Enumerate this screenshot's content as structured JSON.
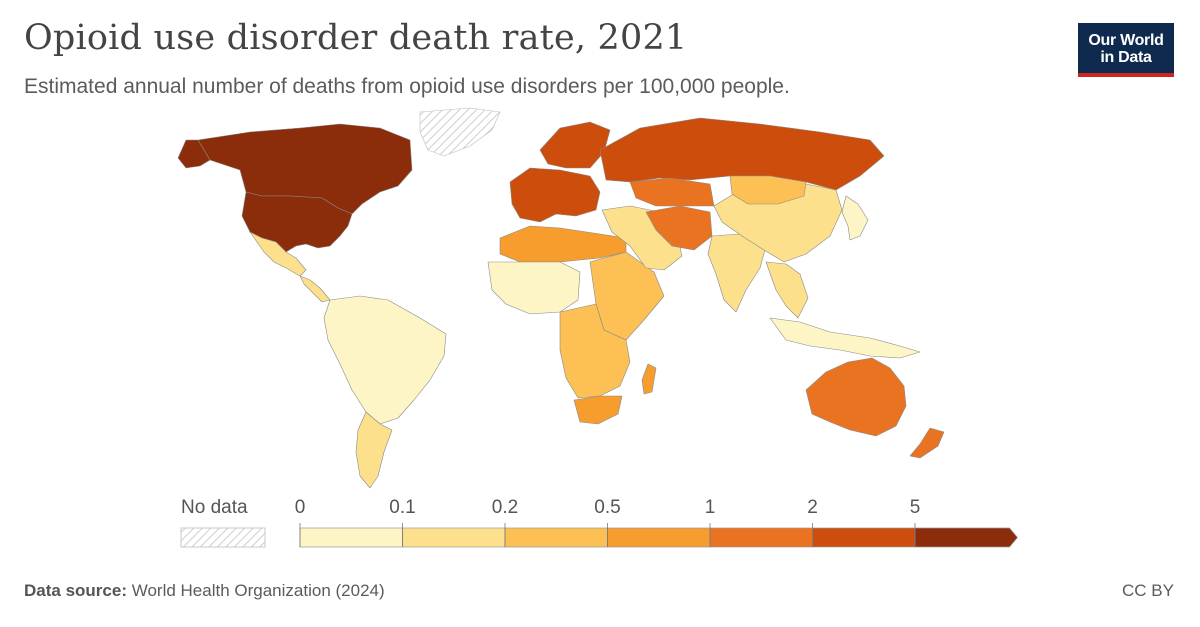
{
  "header": {
    "title": "Opioid use disorder death rate, 2021",
    "subtitle": "Estimated annual number of deaths from opioid use disorders per 100,000 people."
  },
  "logo": {
    "line1": "Our World",
    "line2": "in Data"
  },
  "legend": {
    "no_data_label": "No data",
    "ticks": [
      "0",
      "0.1",
      "0.2",
      "0.5",
      "1",
      "2",
      "5"
    ],
    "bins": [
      {
        "from": "0",
        "to": "0.1",
        "color": "#fdf5c6"
      },
      {
        "from": "0.1",
        "to": "0.2",
        "color": "#fde08c"
      },
      {
        "from": "0.2",
        "to": "0.5",
        "color": "#fcc054"
      },
      {
        "from": "0.5",
        "to": "1",
        "color": "#f79d2e"
      },
      {
        "from": "1",
        "to": "2",
        "color": "#ea7321"
      },
      {
        "from": "2",
        "to": "5",
        "color": "#cc4d0c"
      },
      {
        "from": "5",
        "to": "",
        "color": "#8b2c0a"
      }
    ]
  },
  "map_regions": [
    {
      "name": "canada",
      "bin": 6
    },
    {
      "name": "united-states",
      "bin": 6
    },
    {
      "name": "alaska",
      "bin": 6
    },
    {
      "name": "greenland",
      "bin": null
    },
    {
      "name": "mexico",
      "bin": 1
    },
    {
      "name": "central-america",
      "bin": 1
    },
    {
      "name": "south-america",
      "bin": 0
    },
    {
      "name": "argentina-chile",
      "bin": 1
    },
    {
      "name": "western-europe",
      "bin": 5
    },
    {
      "name": "scandinavia",
      "bin": 5
    },
    {
      "name": "russia",
      "bin": 5
    },
    {
      "name": "north-africa",
      "bin": 3
    },
    {
      "name": "sahel-west-africa",
      "bin": 0
    },
    {
      "name": "east-africa",
      "bin": 2
    },
    {
      "name": "central-southern-africa",
      "bin": 2
    },
    {
      "name": "south-africa",
      "bin": 3
    },
    {
      "name": "madagascar",
      "bin": 3
    },
    {
      "name": "middle-east",
      "bin": 1
    },
    {
      "name": "iran-afghanistan",
      "bin": 4
    },
    {
      "name": "central-asia",
      "bin": 4
    },
    {
      "name": "india",
      "bin": 1
    },
    {
      "name": "china",
      "bin": 1
    },
    {
      "name": "mongolia",
      "bin": 2
    },
    {
      "name": "japan",
      "bin": 0
    },
    {
      "name": "southeast-asia",
      "bin": 1
    },
    {
      "name": "indonesia",
      "bin": 0
    },
    {
      "name": "australia",
      "bin": 4
    },
    {
      "name": "new-zealand",
      "bin": 4
    }
  ],
  "footer": {
    "source_label": "Data source:",
    "source_text": "World Health Organization (2024)",
    "license": "CC BY"
  }
}
